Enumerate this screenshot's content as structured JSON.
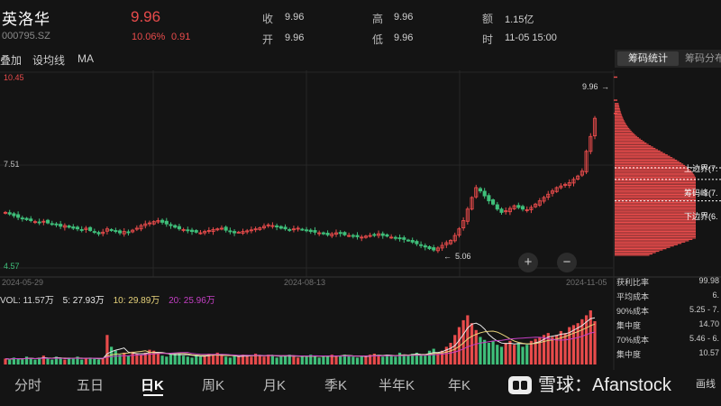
{
  "stock": {
    "name": "英洛华",
    "code": "000795.SZ",
    "price": "9.96",
    "change_pct": "10.06%",
    "change_abs": "0.91"
  },
  "quote": {
    "close_label": "收",
    "close_value": "9.96",
    "open_label": "开",
    "open_value": "9.96",
    "high_label": "高",
    "high_value": "9.96",
    "low_label": "低",
    "low_value": "9.96",
    "amount_label": "额",
    "amount_value": "1.15亿",
    "time_label": "时",
    "time_value": "11-05 15:00"
  },
  "toolbar": {
    "adjust_label": "叠加",
    "ma_settings_label": "设均线",
    "ma_label": "MA",
    "chip_stats_tab": "筹码统计",
    "chip_dist_tab": "筹码分布"
  },
  "chart_data": {
    "type": "candlestick",
    "price_axis": {
      "top_label": "10.45",
      "mid_label": "7.51",
      "bottom_label": "4.57",
      "ylim": [
        4.57,
        10.45
      ]
    },
    "date_labels": [
      "2024-05-29",
      "2024-08-13",
      "2024-11-05"
    ],
    "annotations": {
      "max_label": "9.96",
      "min_label": "5.06"
    },
    "chip_markers": {
      "upper": "上边界(7.",
      "peak": "筹码峰(7.",
      "lower": "下边界(6."
    },
    "closes": [
      6.2,
      6.15,
      6.1,
      6.05,
      6.02,
      5.98,
      5.95,
      5.92,
      5.9,
      5.93,
      5.88,
      5.85,
      5.82,
      5.78,
      5.8,
      5.75,
      5.72,
      5.7,
      5.68,
      5.72,
      5.65,
      5.6,
      5.55,
      5.6,
      5.7,
      5.65,
      5.62,
      5.58,
      5.62,
      5.6,
      5.66,
      5.72,
      5.8,
      5.85,
      5.88,
      5.92,
      5.95,
      5.9,
      5.85,
      5.8,
      5.75,
      5.7,
      5.68,
      5.65,
      5.62,
      5.6,
      5.58,
      5.62,
      5.65,
      5.68,
      5.7,
      5.72,
      5.66,
      5.62,
      5.58,
      5.6,
      5.62,
      5.64,
      5.67,
      5.7,
      5.73,
      5.78,
      5.82,
      5.8,
      5.76,
      5.72,
      5.7,
      5.68,
      5.7,
      5.72,
      5.68,
      5.65,
      5.62,
      5.6,
      5.58,
      5.55,
      5.52,
      5.55,
      5.58,
      5.56,
      5.52,
      5.5,
      5.48,
      5.46,
      5.45,
      5.48,
      5.5,
      5.52,
      5.55,
      5.5,
      5.48,
      5.45,
      5.42,
      5.4,
      5.38,
      5.35,
      5.3,
      5.25,
      5.2,
      5.15,
      5.1,
      5.06,
      5.12,
      5.2,
      5.28,
      5.35,
      5.5,
      5.7,
      5.95,
      6.3,
      6.65,
      6.95,
      6.85,
      6.7,
      6.55,
      6.45,
      6.3,
      6.2,
      6.25,
      6.32,
      6.4,
      6.35,
      6.3,
      6.28,
      6.35,
      6.45,
      6.55,
      6.65,
      6.75,
      6.85,
      6.95,
      7.0,
      7.05,
      7.1,
      7.2,
      7.3,
      7.45,
      8.05,
      8.5,
      9.05
    ],
    "volume": {
      "legend": {
        "vol": "VOL: 11.57万",
        "ma5": "5: 27.93万",
        "ma10": "10: 29.89万",
        "ma20": "20: 25.96万"
      },
      "values": [
        6,
        5,
        7,
        6,
        5,
        8,
        6,
        5,
        7,
        9,
        6,
        5,
        8,
        6,
        5,
        7,
        6,
        8,
        5,
        6,
        7,
        6,
        5,
        6,
        30,
        18,
        14,
        10,
        12,
        9,
        13,
        11,
        10,
        12,
        15,
        14,
        11,
        9,
        8,
        10,
        12,
        11,
        9,
        8,
        7,
        10,
        8,
        9,
        11,
        10,
        12,
        9,
        8,
        7,
        9,
        8,
        10,
        9,
        8,
        11,
        9,
        8,
        10,
        9,
        7,
        8,
        9,
        10,
        8,
        7,
        9,
        8,
        10,
        9,
        7,
        8,
        9,
        10,
        8,
        9,
        10,
        9,
        8,
        7,
        9,
        8,
        10,
        11,
        9,
        8,
        10,
        9,
        8,
        12,
        10,
        9,
        11,
        12,
        10,
        9,
        14,
        16,
        12,
        14,
        18,
        22,
        30,
        38,
        45,
        50,
        42,
        35,
        28,
        25,
        22,
        24,
        20,
        18,
        22,
        24,
        20,
        22,
        18,
        20,
        24,
        26,
        28,
        30,
        32,
        28,
        30,
        34,
        32,
        38,
        40,
        42,
        46,
        50,
        55,
        44
      ]
    },
    "chip_stats": [
      {
        "label": "获利比率",
        "value": "99.98"
      },
      {
        "label": "平均成本",
        "value": "6."
      },
      {
        "label": "90%成本",
        "value": "5.25 - 7."
      },
      {
        "label": "集中度",
        "value": "14.70"
      },
      {
        "label": "70%成本",
        "value": "5.46 - 6."
      },
      {
        "label": "集中度",
        "value": "10.57"
      }
    ]
  },
  "period_tabs": [
    "分时",
    "五日",
    "日K",
    "周K",
    "月K",
    "季K",
    "半年K",
    "年K"
  ],
  "active_period": "日K",
  "watermark": "雪球：Afanstock",
  "draw_label": "画线",
  "colors": {
    "up": "#e84b4b",
    "down": "#3fbf7a",
    "bg": "#141414",
    "ma5": "#e8e8e8",
    "ma10": "#e6d27a",
    "ma20": "#c43fc4"
  }
}
